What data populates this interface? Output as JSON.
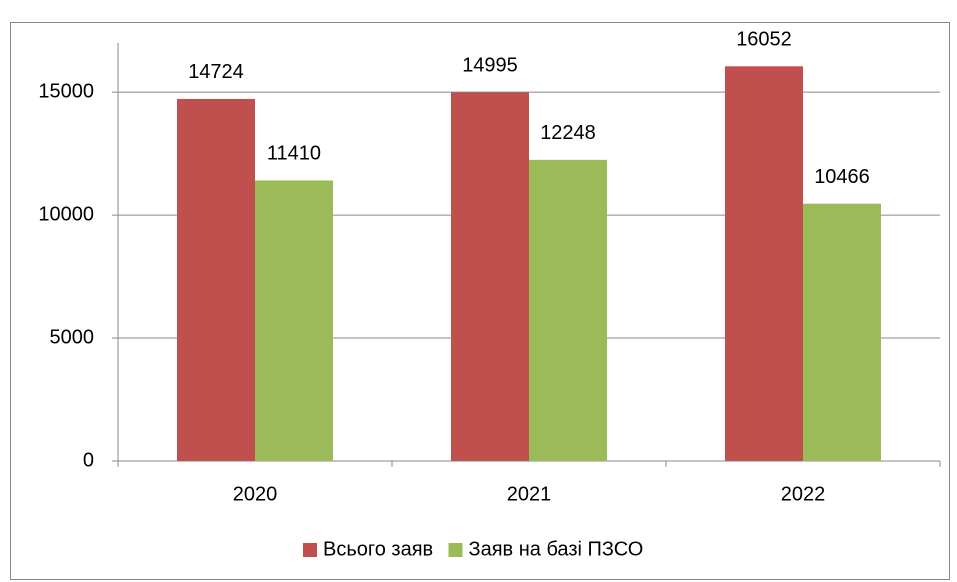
{
  "chart_data": {
    "type": "bar",
    "categories": [
      "2020",
      "2021",
      "2022"
    ],
    "series": [
      {
        "name": "Всього заяв",
        "color": "#c0504d",
        "values": [
          14724,
          14995,
          16052
        ]
      },
      {
        "name": "Заяв на базі ПЗСО",
        "color": "#9bbb59",
        "values": [
          11410,
          12248,
          10466
        ]
      }
    ],
    "ylim": [
      0,
      17000
    ],
    "yticks": [
      0,
      5000,
      10000,
      15000
    ],
    "grid": true,
    "legend": "bottom"
  }
}
